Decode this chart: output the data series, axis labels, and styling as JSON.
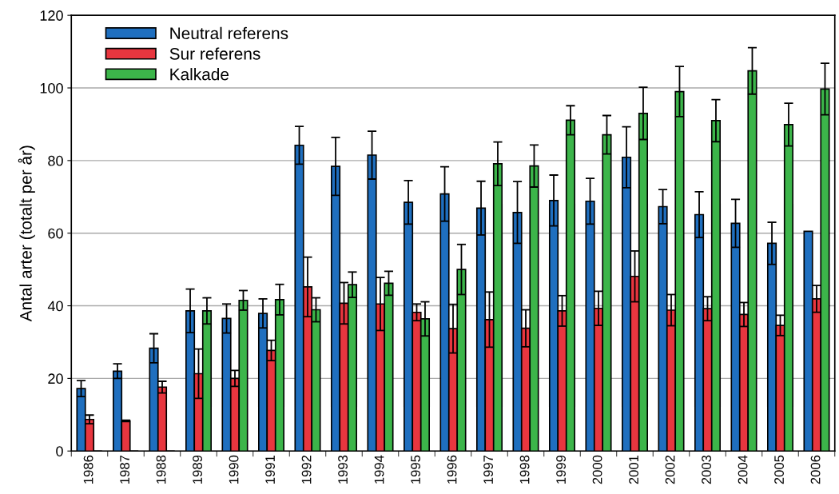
{
  "chart_data": {
    "type": "bar",
    "ylabel": "Antal arter (totalt per år)",
    "categories": [
      "1986",
      "1987",
      "1988",
      "1989",
      "1990",
      "1991",
      "1992",
      "1993",
      "1994",
      "1995",
      "1996",
      "1997",
      "1998",
      "1999",
      "2000",
      "2001",
      "2002",
      "2003",
      "2004",
      "2005",
      "2006"
    ],
    "series": [
      {
        "name": "Neutral referens",
        "color": "#1f6fbf",
        "values": [
          17.2,
          22,
          28.3,
          38.6,
          36.5,
          37.9,
          84.2,
          78.4,
          81.5,
          68.5,
          70.8,
          66.9,
          65.7,
          69,
          68.8,
          80.9,
          67.3,
          65.1,
          62.7,
          57.2,
          60.5
        ],
        "errors": [
          2.2,
          2,
          4,
          6,
          4,
          4,
          5.2,
          8,
          6.6,
          6,
          7.5,
          7.4,
          8.5,
          7,
          6.3,
          8.4,
          4.7,
          6.3,
          6.6,
          5.8,
          null
        ]
      },
      {
        "name": "Sur referens",
        "color": "#e8363f",
        "values": [
          8.7,
          8.3,
          17.6,
          21.3,
          20,
          27.7,
          45.2,
          40.7,
          40.5,
          38.2,
          33.7,
          36.2,
          33.8,
          38.6,
          39.3,
          48.1,
          38.8,
          39.2,
          37.6,
          34.6,
          41.9
        ],
        "errors": [
          1.2,
          0.2,
          1.6,
          6.8,
          2.2,
          2.8,
          8.2,
          5.7,
          7.3,
          2.3,
          6.7,
          7.6,
          5.1,
          4.2,
          4.7,
          7,
          4.3,
          3.3,
          3.3,
          2.8,
          3.7
        ]
      },
      {
        "name": "Kalkade",
        "color": "#3cb54a",
        "values": [
          0,
          0,
          0,
          38.6,
          41.5,
          41.7,
          38.9,
          45.8,
          46.2,
          36.4,
          50,
          79.1,
          78.5,
          91.1,
          87.1,
          93,
          99,
          91,
          104.7,
          89.9,
          99.7
        ],
        "errors": [
          null,
          null,
          null,
          3.6,
          2.7,
          4.2,
          3.3,
          3.5,
          3.3,
          4.7,
          6.9,
          6,
          5.8,
          4,
          5.3,
          7.2,
          6.9,
          5.8,
          6.4,
          5.9,
          7.1
        ]
      }
    ],
    "ylim": [
      0,
      120
    ],
    "yticks": [
      0,
      20,
      40,
      60,
      80,
      100,
      120
    ],
    "grid": "y",
    "legend": "top left"
  }
}
